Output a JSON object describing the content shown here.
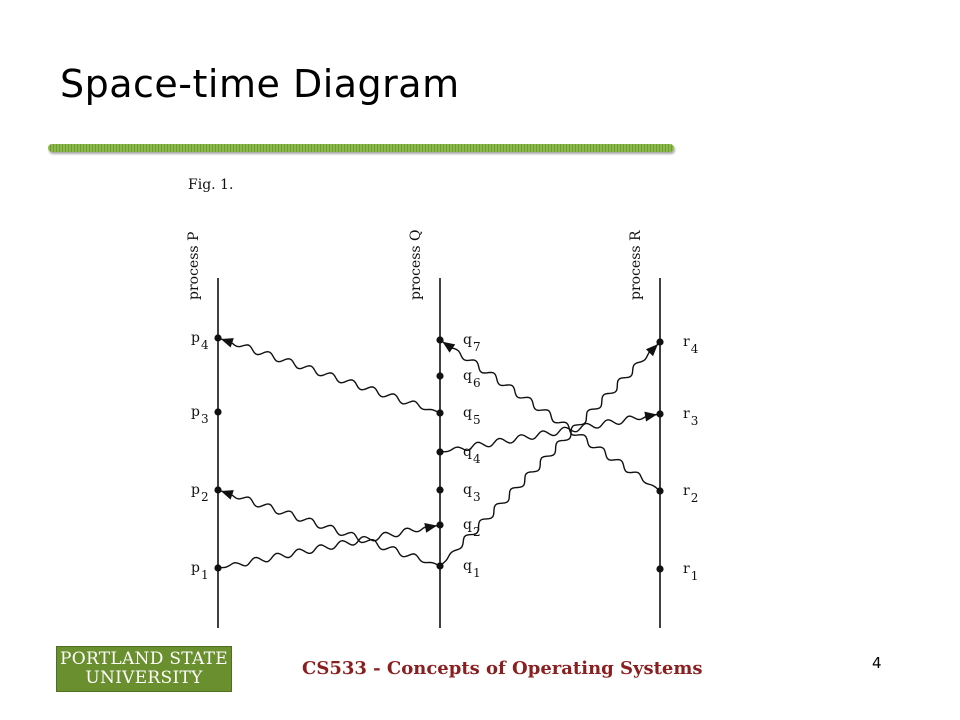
{
  "slide": {
    "title": "Space-time Diagram",
    "footer_course": "CS533 - Concepts of Operating Systems",
    "page_number": "4"
  },
  "logo": {
    "line1": "PORTLAND STATE",
    "line2": "UNIVERSITY",
    "color": "#6a8f2e"
  },
  "figure": {
    "caption": "Fig. 1.",
    "processes": [
      {
        "name": "process P",
        "events": [
          "p1",
          "p2",
          "p3",
          "p4"
        ]
      },
      {
        "name": "process Q",
        "events": [
          "q1",
          "q2",
          "q3",
          "q4",
          "q5",
          "q6",
          "q7"
        ]
      },
      {
        "name": "process R",
        "events": [
          "r1",
          "r2",
          "r3",
          "r4"
        ]
      }
    ],
    "messages": [
      {
        "from": "p1",
        "to": "q2"
      },
      {
        "from": "q1",
        "to": "p2"
      },
      {
        "from": "q1",
        "to": "r4"
      },
      {
        "from": "q4",
        "to": "r3"
      },
      {
        "from": "q5",
        "to": "p4"
      },
      {
        "from": "r2",
        "to": "q7"
      }
    ]
  },
  "colors": {
    "title_rule": "#8cb84a",
    "footer_text": "#8a1f1f"
  }
}
